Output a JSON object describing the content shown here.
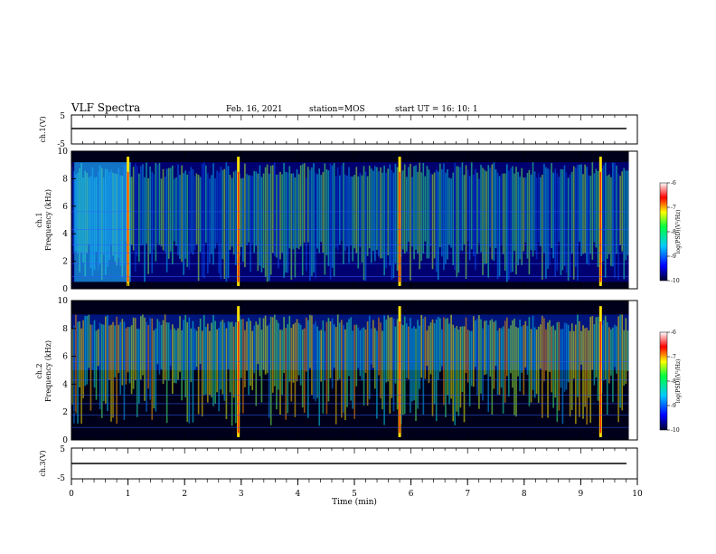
{
  "header": {
    "title": "VLF Spectra",
    "date": "Feb. 16, 2021",
    "station": "station=MOS",
    "start": "start UT = 16: 10: 1"
  },
  "colors": {
    "spectrum": [
      "#000008",
      "#00002a",
      "#0000a0",
      "#0050ff",
      "#00d0ff",
      "#40ff90",
      "#ffff00",
      "#ff6000",
      "#ff0000",
      "#ffffff"
    ]
  },
  "chart_data": [
    {
      "type": "line",
      "panel": "ch.1(V)",
      "ylabel": "ch.1(V)",
      "yticks": [
        "5",
        "-5"
      ],
      "ylim": [
        -5,
        5
      ],
      "series": [
        {
          "x": [
            0,
            10
          ],
          "y": [
            0,
            0
          ]
        }
      ]
    },
    {
      "type": "heatmap",
      "panel": "ch.1 spectrogram",
      "ylabel": "ch.1\nFrequency (kHz)",
      "ylim": [
        0,
        10
      ],
      "yticks": [
        "0",
        "2",
        "4",
        "6",
        "8",
        "10"
      ],
      "xlim": [
        0,
        9.85
      ],
      "colorbar": {
        "label": "log(PSD)(V²/Hz)",
        "range": [
          -10,
          -6
        ],
        "ticks": [
          "-6",
          "-7",
          "-8",
          "-9",
          "-10"
        ]
      },
      "band_khz": [
        0.5,
        9.2
      ],
      "bright_spikes_min": [
        1.0,
        2.95,
        5.8,
        9.35
      ],
      "bursts_min": [
        [
          0.05,
          1.05,
          9.2
        ]
      ]
    },
    {
      "type": "heatmap",
      "panel": "ch.2 spectrogram",
      "ylabel": "ch.2\nFrequency (kHz)",
      "ylim": [
        0,
        10
      ],
      "yticks": [
        "0",
        "2",
        "4",
        "6",
        "8",
        "10"
      ],
      "xlim": [
        0,
        9.85
      ],
      "colorbar": {
        "label": "log(PSD)(V²/Hz)",
        "range": [
          -10,
          -6
        ],
        "ticks": [
          "-6",
          "-7",
          "-8",
          "-9",
          "-10"
        ]
      },
      "band_khz": [
        5.0,
        9.0
      ],
      "bright_spikes_min": [
        2.95,
        5.8,
        9.35
      ]
    },
    {
      "type": "line",
      "panel": "ch.3(V)",
      "ylabel": "ch.3(V)",
      "yticks": [
        "5",
        "-5"
      ],
      "ylim": [
        -5,
        5
      ],
      "xlabel": "Time (min)",
      "xticks": [
        "0",
        "1",
        "2",
        "3",
        "4",
        "5",
        "6",
        "7",
        "8",
        "9",
        "10"
      ],
      "xlim": [
        0,
        10
      ],
      "series": [
        {
          "x": [
            0,
            10
          ],
          "y": [
            0,
            0
          ]
        }
      ]
    }
  ]
}
